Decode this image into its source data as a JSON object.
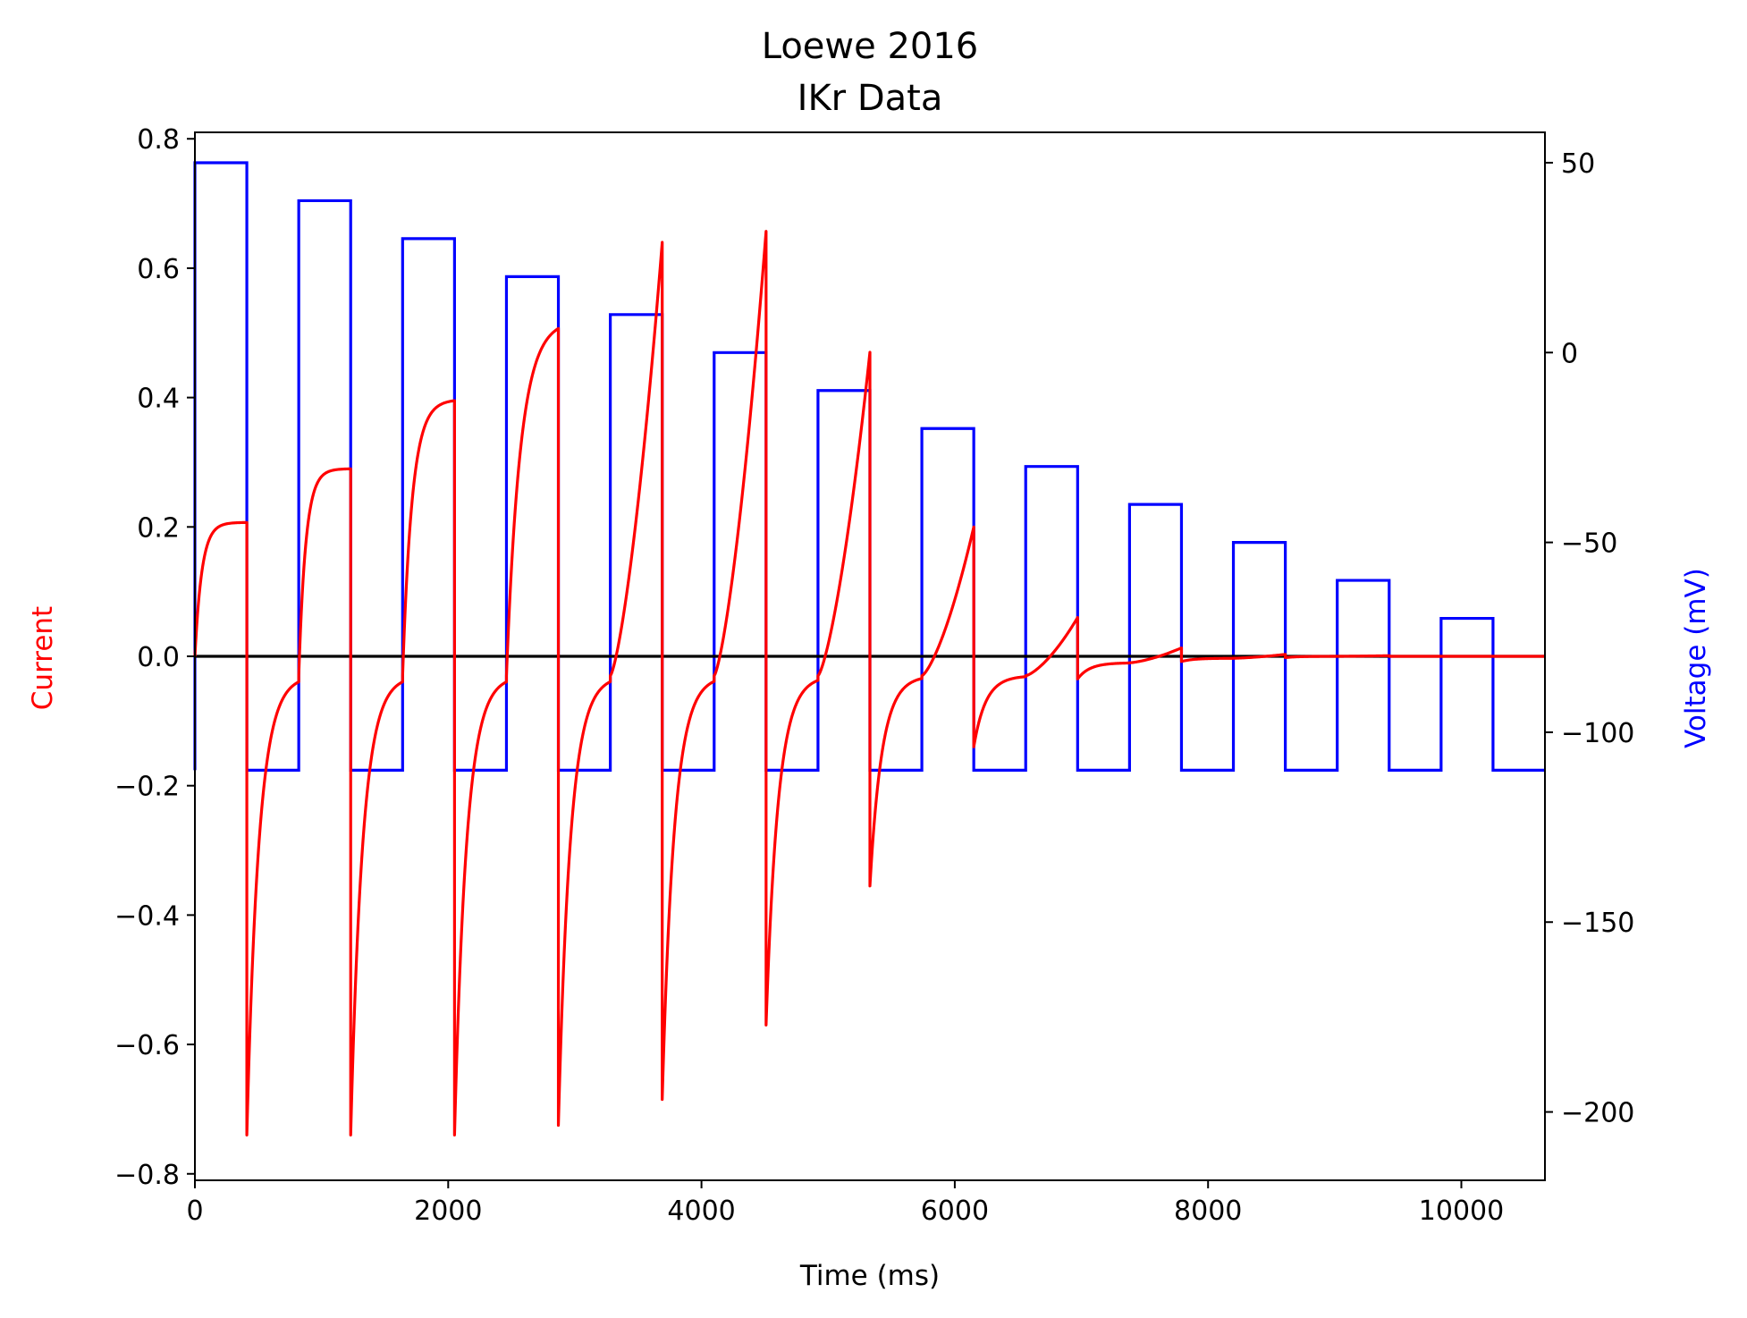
{
  "chart_data": {
    "type": "line",
    "title": "Loewe 2016",
    "subtitle": "IKr Data",
    "xlabel": "Time (ms)",
    "ylabel": "Current",
    "y2label": "Voltage (mV)",
    "xlim": [
      0,
      10660
    ],
    "ylim": [
      -0.81,
      0.81
    ],
    "y2lim": [
      -218,
      58
    ],
    "x_ticks": [
      0,
      2000,
      4000,
      6000,
      8000,
      10000
    ],
    "x_tick_labels": [
      "0",
      "2000",
      "4000",
      "6000",
      "8000",
      "10000"
    ],
    "y_ticks": [
      -0.8,
      -0.6,
      -0.4,
      -0.2,
      0.0,
      0.2,
      0.4,
      0.6,
      0.8
    ],
    "y_tick_labels": [
      "−0.8",
      "−0.6",
      "−0.4",
      "−0.2",
      "0.0",
      "0.2",
      "0.4",
      "0.6",
      "0.8"
    ],
    "y2_ticks": [
      -200,
      -150,
      -100,
      -50,
      0,
      50
    ],
    "y2_tick_labels": [
      "−200",
      "−150",
      "−100",
      "−50",
      "0",
      "50"
    ],
    "grid": false,
    "colors": {
      "current": "#ff0000",
      "voltage": "#0000ff",
      "zero_line": "#000000"
    },
    "series": [
      {
        "name": "Voltage (mV)",
        "axis": "right",
        "holding_potential": -110,
        "cycle_period_ms": 820,
        "step_duration_ms": 410,
        "step_start_ms": [
          0,
          820,
          1640,
          2460,
          3280,
          4100,
          4920,
          5740,
          6560,
          7380,
          8200,
          9020,
          9840
        ],
        "step_voltage_mV": [
          50,
          40,
          30,
          20,
          10,
          0,
          -10,
          -20,
          -30,
          -40,
          -50,
          -60,
          -70
        ],
        "end_ms": 10660
      },
      {
        "name": "Current",
        "axis": "left",
        "step_peak_current": [
          0.207,
          0.29,
          0.397,
          0.52,
          0.64,
          0.657,
          0.47,
          0.2,
          0.06,
          0.013,
          0.003,
          0.001,
          0.0
        ],
        "tail_current_start": [
          -0.74,
          -0.74,
          -0.74,
          -0.725,
          -0.685,
          -0.57,
          -0.355,
          -0.14,
          -0.035,
          -0.008,
          -0.002,
          0.0,
          0.0
        ],
        "rebound_current": [
          -0.03,
          -0.03,
          -0.03,
          -0.03,
          -0.03,
          -0.03,
          -0.03,
          -0.03,
          -0.01,
          -0.003,
          0.0,
          0.0,
          0.0
        ]
      },
      {
        "name": "zero",
        "axis": "left",
        "y": 0.0
      }
    ]
  }
}
